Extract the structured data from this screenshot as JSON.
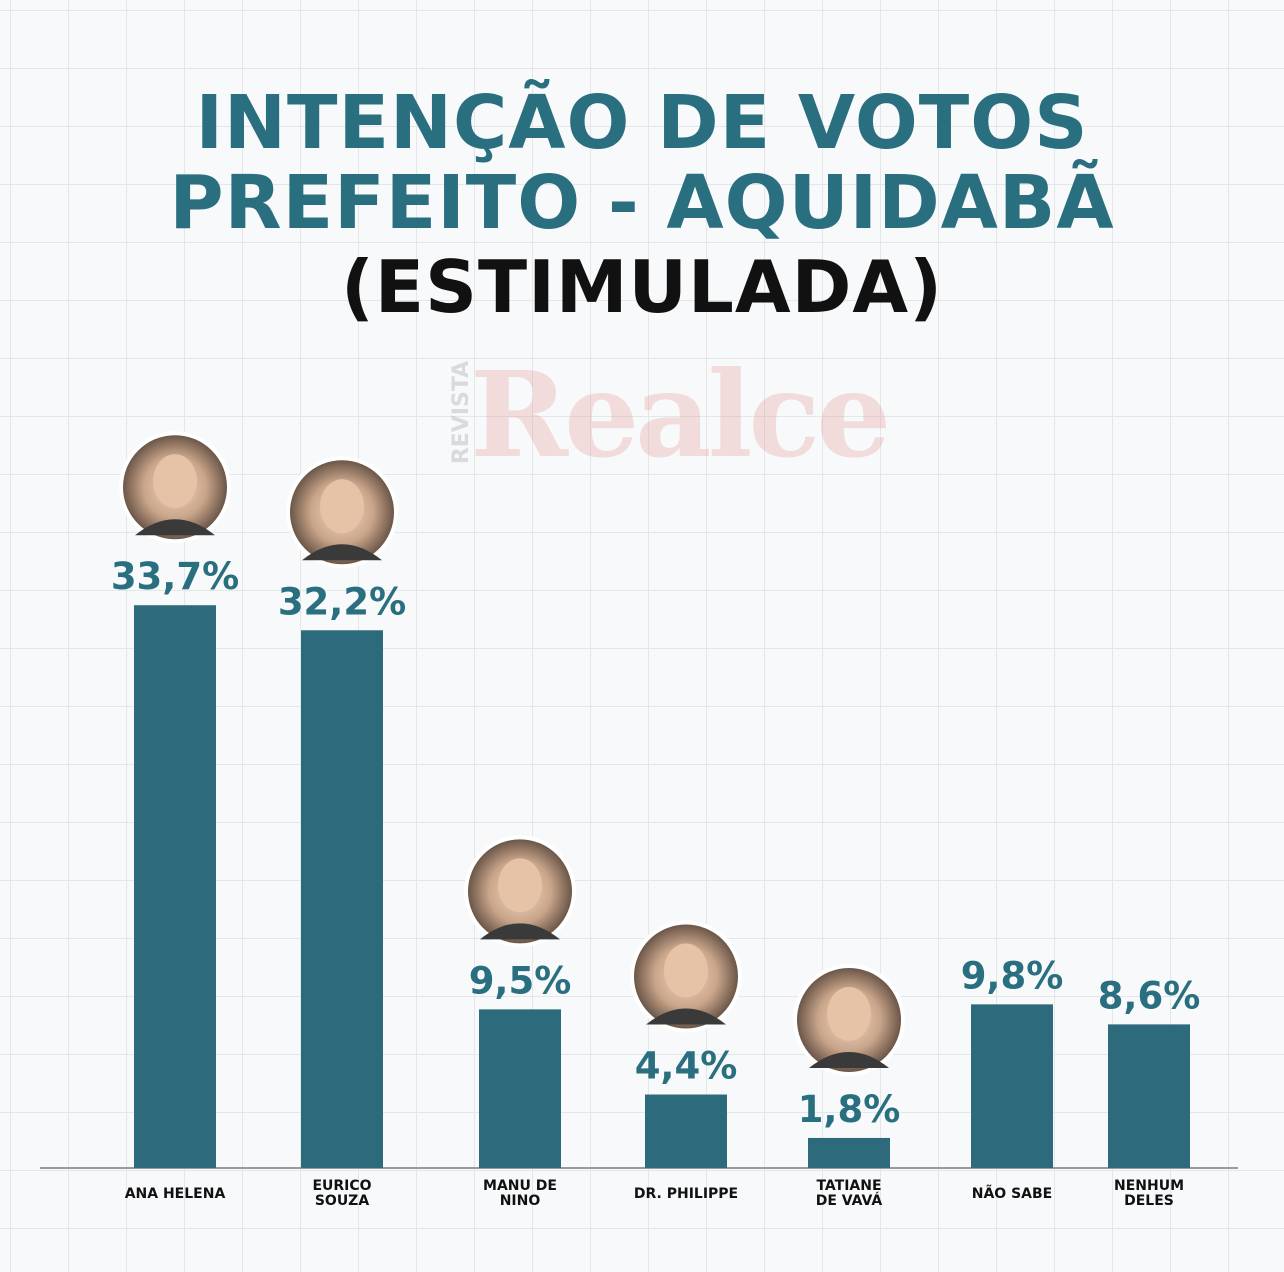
{
  "title": {
    "line1": "INTENÇÃO DE VOTOS",
    "line2": "PREFEITO - AQUIDABÃ",
    "line3": "(ESTIMULADA)"
  },
  "watermark": {
    "brand": "Realce",
    "prefix": "REVISTA"
  },
  "colors": {
    "bar": "#2d6b7c",
    "value_label": "#2a6f80",
    "title_dark": "#111111",
    "baseline": "#9a9a9a"
  },
  "chart_data": {
    "type": "bar",
    "title": "INTENÇÃO DE VOTOS PREFEITO - AQUIDABÃ (ESTIMULADA)",
    "categories": [
      [
        "ANA HELENA"
      ],
      [
        "EURICO",
        "SOUZA"
      ],
      [
        "MANU DE",
        "NINO"
      ],
      [
        "DR. PHILIPPE"
      ],
      [
        "TATIANE",
        "DE VAVÁ"
      ],
      [
        "NÃO SABE"
      ],
      [
        "NENHUM",
        "DELES"
      ]
    ],
    "values": [
      33.7,
      32.2,
      9.5,
      4.4,
      1.8,
      9.8,
      8.6
    ],
    "value_labels": [
      "33,7%",
      "32,2%",
      "9,5%",
      "4,4%",
      "1,8%",
      "9,8%",
      "8,6%"
    ],
    "has_photo": [
      true,
      true,
      true,
      true,
      true,
      false,
      false
    ],
    "photo_icons": [
      "avatar-photo",
      "avatar-photo",
      "avatar-photo",
      "avatar-photo",
      "avatar-photo",
      "",
      ""
    ],
    "ylim": [
      0,
      40
    ],
    "grid": true,
    "legend": "none"
  }
}
